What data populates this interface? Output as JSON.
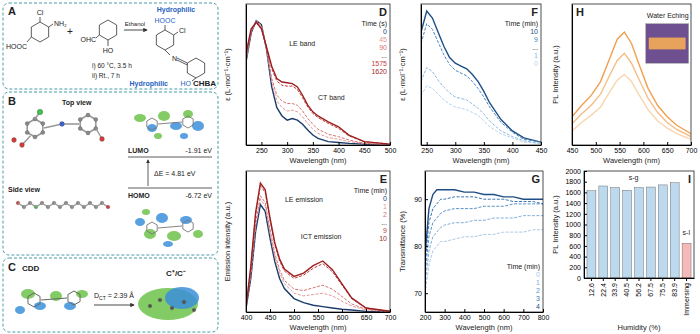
{
  "diagrams": {
    "A": {
      "label": "A",
      "reactant_1": {
        "acid": "HOOC",
        "halogen": "Cl",
        "amine": "NH₂"
      },
      "plus": "+",
      "reactant_2": {
        "aldehyde": "OHC",
        "hydroxyl": "HO"
      },
      "solvent": "Ethanol",
      "step_1": "i) 60 °C, 3.5 h",
      "step_2": "ii) Rt., 7 h",
      "product": {
        "acid": "HOOC",
        "halogen": "Cl",
        "imine": "N",
        "hydroxyl": "HO",
        "tag_top": "Hydrophilic",
        "tag_bottom": "Hydrophilic",
        "name": "CHBA"
      }
    },
    "B": {
      "label": "B",
      "top_view": "Top view",
      "side_view": "Side view",
      "lumo": {
        "name": "LUMO",
        "energy": "-1.91 eV"
      },
      "gap": "ΔE = 4.81 eV",
      "homo": {
        "name": "HOMO",
        "energy": "-6.72 eV"
      }
    },
    "C": {
      "label": "C",
      "cdd": "CDD",
      "dct_symbol": "D",
      "dct_subscript": "CT",
      "dct_value": "= 2.39 Å",
      "charges": "C⁺/C⁻"
    }
  },
  "chart_data": [
    {
      "label": "D",
      "type": "line",
      "x_label": "Wavelength (nm)",
      "y_label": "ε (L·mol⁻¹·cm⁻¹)",
      "x": [
        220,
        230,
        240,
        250,
        260,
        270,
        280,
        290,
        300,
        310,
        320,
        330,
        340,
        350,
        360,
        380,
        400,
        420,
        450,
        500
      ],
      "series": [
        {
          "name": "0",
          "color": "#1b3d6e",
          "line_style": "solid",
          "values": [
            100,
            135,
            150,
            145,
            115,
            70,
            45,
            35,
            30,
            32,
            30,
            25,
            18,
            12,
            8,
            4,
            3,
            2,
            1,
            0
          ]
        },
        {
          "name": "45",
          "color": "#e39a9a",
          "line_style": "dashed",
          "values": [
            102,
            136,
            150,
            144,
            116,
            76,
            53,
            45,
            41,
            42,
            40,
            34,
            26,
            19,
            14,
            9,
            7,
            4,
            2,
            0
          ]
        },
        {
          "name": "90",
          "color": "#d77272",
          "line_style": "dashed",
          "values": [
            104,
            137,
            149,
            143,
            116,
            80,
            60,
            53,
            50,
            50,
            48,
            41,
            32,
            25,
            19,
            13,
            10,
            6,
            2,
            0
          ]
        },
        {
          "name": "1575",
          "color": "#bf3b3b",
          "line_style": "dashed",
          "values": [
            108,
            139,
            148,
            141,
            117,
            92,
            77,
            72,
            71,
            71,
            67,
            57,
            46,
            38,
            33,
            26,
            20,
            11,
            4,
            1
          ]
        },
        {
          "name": "1620",
          "color": "#9c1f1f",
          "line_style": "solid",
          "values": [
            110,
            140,
            148,
            140,
            118,
            95,
            80,
            76,
            75,
            74,
            70,
            60,
            48,
            40,
            35,
            28,
            22,
            12,
            4,
            1
          ]
        }
      ],
      "xlim": [
        220,
        500
      ],
      "xticks": [
        250,
        300,
        350,
        400,
        450,
        500
      ],
      "ylim": [
        0,
        170
      ],
      "tick_labels": "x",
      "grid": false,
      "legend": "upper right",
      "legend_title": "Time (s)",
      "legend_gap": "...",
      "annotations": [
        "LE band",
        "CT band"
      ]
    },
    {
      "label": "E",
      "type": "line",
      "x_label": "Wavelength (nm)",
      "y_label": "Emission intensity (a.u.)",
      "x": [
        400,
        410,
        420,
        430,
        440,
        450,
        460,
        470,
        480,
        500,
        520,
        540,
        560,
        580,
        600,
        620,
        650,
        700
      ],
      "series": [
        {
          "name": "0",
          "color": "#1b3d6e",
          "line_style": "solid",
          "values": [
            5,
            50,
            120,
            160,
            150,
            110,
            75,
            50,
            35,
            20,
            14,
            10,
            8,
            6,
            4,
            3,
            1,
            0
          ]
        },
        {
          "name": "1",
          "color": "#e39a9a",
          "line_style": "dashed",
          "values": [
            6,
            55,
            128,
            168,
            158,
            118,
            82,
            58,
            42,
            28,
            24,
            26,
            28,
            24,
            16,
            9,
            3,
            0
          ]
        },
        {
          "name": "2",
          "color": "#d77272",
          "line_style": "dashed",
          "values": [
            6,
            58,
            133,
            173,
            163,
            123,
            87,
            63,
            47,
            34,
            32,
            36,
            40,
            34,
            23,
            12,
            4,
            1
          ]
        },
        {
          "name": "9",
          "color": "#bf3b3b",
          "line_style": "dashed",
          "values": [
            7,
            66,
            145,
            188,
            178,
            137,
            100,
            76,
            61,
            50,
            55,
            65,
            72,
            60,
            40,
            20,
            6,
            1
          ]
        },
        {
          "name": "10",
          "color": "#9c1f1f",
          "line_style": "solid",
          "values": [
            7,
            68,
            148,
            192,
            182,
            140,
            103,
            79,
            64,
            53,
            58,
            69,
            76,
            63,
            42,
            21,
            6,
            1
          ]
        }
      ],
      "xlim": [
        400,
        700
      ],
      "xticks": [
        400,
        450,
        500,
        550,
        600,
        650,
        700
      ],
      "ylim": [
        0,
        210
      ],
      "tick_labels": "x",
      "grid": false,
      "legend": "upper right",
      "legend_title": "Time (min)",
      "legend_gap": "...",
      "annotations": [
        "LE emission",
        "ICT emission"
      ]
    },
    {
      "label": "F",
      "type": "line",
      "x_label": "Wavelength (nm)",
      "y_label": "ε (L·mol⁻¹·cm⁻¹)",
      "x": [
        240,
        250,
        260,
        270,
        280,
        290,
        300,
        310,
        320,
        330,
        340,
        350,
        360,
        380,
        400,
        420,
        450
      ],
      "series": [
        {
          "name": "10",
          "color": "#1f4e85",
          "line_style": "solid",
          "values": [
            80,
            95,
            90,
            80,
            70,
            62,
            58,
            56,
            54,
            50,
            45,
            38,
            30,
            18,
            10,
            5,
            2
          ]
        },
        {
          "name": "9",
          "color": "#4b86bf",
          "line_style": "dashed",
          "values": [
            72,
            86,
            82,
            73,
            64,
            57,
            53,
            51,
            49,
            45,
            40,
            34,
            27,
            16,
            9,
            4,
            2
          ]
        },
        {
          "name": "1",
          "color": "#8fb9e0",
          "line_style": "dashed",
          "values": [
            45,
            55,
            52,
            46,
            41,
            37,
            34,
            33,
            32,
            29,
            26,
            22,
            17,
            10,
            6,
            3,
            1
          ]
        },
        {
          "name": "0",
          "color": "#b9d3ec",
          "line_style": "dashed",
          "values": [
            35,
            42,
            40,
            36,
            32,
            29,
            27,
            26,
            25,
            23,
            21,
            17,
            13,
            8,
            5,
            2,
            1
          ]
        }
      ],
      "xlim": [
        240,
        450
      ],
      "xticks": [
        250,
        300,
        350,
        400,
        450
      ],
      "ylim": [
        0,
        100
      ],
      "tick_labels": "x",
      "grid": false,
      "legend": "upper right",
      "legend_title": "Time (min)",
      "legend_gap": "..."
    },
    {
      "label": "G",
      "type": "line",
      "x_label": "Wavelength (nm)",
      "y_label": "Transmittance (%)",
      "x": [
        200,
        220,
        240,
        260,
        280,
        300,
        350,
        400,
        450,
        500,
        550,
        600,
        650,
        700,
        750,
        800
      ],
      "series": [
        {
          "name": "0",
          "color": "#a9c8e6",
          "line_style": "dashed",
          "values": [
            70,
            76,
            79,
            80,
            81,
            81,
            81.5,
            82,
            82,
            82.5,
            82.5,
            83,
            83,
            83,
            83.5,
            83.5
          ]
        },
        {
          "name": "1",
          "color": "#7fadd9",
          "line_style": "dashed",
          "values": [
            72,
            79,
            82,
            83,
            84,
            84.5,
            85,
            85,
            85.5,
            85.5,
            86,
            86,
            86,
            86.5,
            86.5,
            86.5
          ]
        },
        {
          "name": "2",
          "color": "#5a91c9",
          "line_style": "dashed",
          "values": [
            74,
            82,
            85,
            86,
            87,
            87.5,
            88,
            88,
            88,
            88.5,
            88.5,
            88.5,
            89,
            89,
            89,
            89
          ]
        },
        {
          "name": "3",
          "color": "#3a74b2",
          "line_style": "dashed",
          "values": [
            76,
            85,
            88,
            89,
            90,
            90,
            90.5,
            90.5,
            90.5,
            90,
            90,
            90,
            89.5,
            89.5,
            89.5,
            89
          ]
        },
        {
          "name": "4",
          "color": "#1f4e85",
          "line_style": "solid",
          "values": [
            78,
            88,
            91,
            92,
            92,
            92,
            92,
            91.5,
            91.5,
            91,
            91,
            90.5,
            90.5,
            90,
            90,
            90
          ]
        }
      ],
      "xlim": [
        200,
        800
      ],
      "xticks": [
        200,
        300,
        400,
        500,
        600,
        700,
        800
      ],
      "ylim": [
        66,
        96
      ],
      "yticks": [
        70,
        80,
        90
      ],
      "grid": false,
      "legend": "lower right",
      "legend_title": "Time (min)"
    },
    {
      "label": "H",
      "type": "line",
      "x_label": "Wavelength (nm)",
      "y_label": "PL Intensity (a.u.)",
      "x": [
        450,
        470,
        490,
        510,
        530,
        545,
        560,
        575,
        590,
        610,
        630,
        650,
        670,
        700
      ],
      "series": [
        {
          "color": "#f0a050",
          "line_style": "solid",
          "values": [
            20,
            28,
            35,
            45,
            62,
            75,
            80,
            72,
            58,
            40,
            28,
            20,
            14,
            8
          ]
        },
        {
          "color": "#f5bd85",
          "line_style": "solid",
          "values": [
            15,
            22,
            28,
            36,
            50,
            60,
            65,
            58,
            47,
            33,
            23,
            16,
            11,
            6
          ]
        },
        {
          "color": "#f9d6b0",
          "line_style": "solid",
          "values": [
            10,
            16,
            21,
            27,
            38,
            46,
            50,
            45,
            36,
            25,
            17,
            12,
            8,
            4
          ]
        }
      ],
      "xlim": [
        450,
        700
      ],
      "xticks": [
        450,
        500,
        550,
        600,
        650,
        700
      ],
      "ylim": [
        0,
        100
      ],
      "tick_labels": "x",
      "grid": false,
      "annotations": [
        "Water Eching"
      ]
    },
    {
      "label": "I",
      "type": "bar",
      "x_label": "Humidity (%)",
      "y_label": "PL Intensity (a.u.)",
      "categories": [
        "12.6",
        "22.4",
        "33.9",
        "40.5",
        "56.2",
        "67.5",
        "75.5",
        "83.9",
        "Immersing"
      ],
      "values": [
        1630,
        1720,
        1690,
        1640,
        1690,
        1700,
        1740,
        1780,
        650
      ],
      "colors": [
        "#bcd9ee",
        "#bcd9ee",
        "#bcd9ee",
        "#bcd9ee",
        "#bcd9ee",
        "#bcd9ee",
        "#bcd9ee",
        "#bcd9ee",
        "#f6b9b9"
      ],
      "ylim": [
        0,
        2000
      ],
      "yticks": [
        0,
        200,
        400,
        600,
        800,
        1000,
        1200,
        1400,
        1600,
        1800,
        2000
      ],
      "grid": false,
      "annotations": [
        "s-g",
        "s-l"
      ]
    }
  ]
}
